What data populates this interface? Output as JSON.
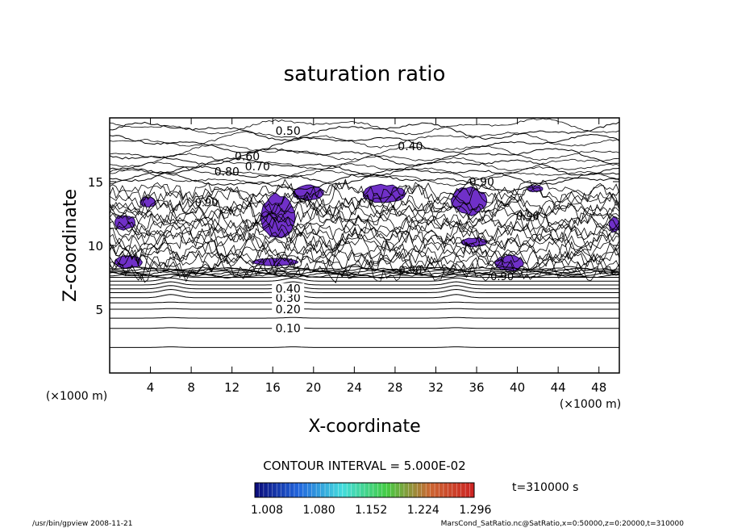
{
  "chart_data": {
    "type": "contour",
    "title": "saturation ratio",
    "xlabel": "X-coordinate",
    "ylabel": "Z-coordinate",
    "x_unit": "(×1000 m)",
    "y_unit": "(×1000 m)",
    "xlim": [
      0,
      50
    ],
    "ylim": [
      0,
      20
    ],
    "x_ticks": [
      4,
      8,
      12,
      16,
      20,
      24,
      28,
      32,
      36,
      40,
      44,
      48
    ],
    "y_ticks": [
      5,
      10,
      15
    ],
    "contour_interval_text": "CONTOUR INTERVAL = 5.000E-02",
    "time_label": "t=310000 s",
    "colorbar": {
      "tick_labels": [
        "1.008",
        "1.080",
        "1.152",
        "1.224",
        "1.296"
      ],
      "colors": [
        "#0a0a78",
        "#2266dd",
        "#44dddd",
        "#44cc44",
        "#cc6633",
        "#cc2222"
      ],
      "min": 1.008,
      "max": 1.296
    },
    "supersaturated_color": "#7030c8",
    "horizontal_contours": [
      {
        "z": 2.0,
        "label": ""
      },
      {
        "z": 3.5,
        "label": "0.10"
      },
      {
        "z": 4.3,
        "label": ""
      },
      {
        "z": 5.0,
        "label": "0.20"
      },
      {
        "z": 5.5,
        "label": ""
      },
      {
        "z": 5.9,
        "label": "0.30"
      },
      {
        "z": 6.3,
        "label": ""
      },
      {
        "z": 6.6,
        "label": "0.40"
      },
      {
        "z": 6.9,
        "label": ""
      },
      {
        "z": 7.2,
        "label": ""
      },
      {
        "z": 7.5,
        "label": ""
      }
    ],
    "upper_contours": [
      {
        "z": 19.0,
        "label": "0.50"
      },
      {
        "z": 18.0,
        "label": "0.40"
      },
      {
        "z": 17.0,
        "label": "0.60"
      },
      {
        "z": 16.2,
        "label": "0.70"
      },
      {
        "z": 15.5,
        "label": "0.80"
      },
      {
        "z": 15.0,
        "label": "0.90"
      }
    ],
    "midlevel_labels": [
      "0.90",
      "0.90",
      "0.90",
      "0.90"
    ],
    "purple_regions": [
      {
        "x": [
          0.5,
          2.5
        ],
        "z": [
          11.2,
          12.4
        ]
      },
      {
        "x": [
          3.0,
          4.5
        ],
        "z": [
          13.0,
          13.8
        ]
      },
      {
        "x": [
          14.8,
          18.2
        ],
        "z": [
          10.5,
          14.0
        ]
      },
      {
        "x": [
          18.0,
          21.0
        ],
        "z": [
          13.5,
          14.7
        ]
      },
      {
        "x": [
          24.8,
          29.0
        ],
        "z": [
          13.3,
          14.8
        ]
      },
      {
        "x": [
          33.5,
          37.0
        ],
        "z": [
          12.4,
          14.6
        ]
      },
      {
        "x": [
          0.5,
          3.2
        ],
        "z": [
          8.2,
          9.2
        ]
      },
      {
        "x": [
          14.0,
          18.5
        ],
        "z": [
          8.4,
          9.0
        ]
      },
      {
        "x": [
          37.8,
          40.6
        ],
        "z": [
          8.0,
          9.2
        ]
      },
      {
        "x": [
          34.5,
          37.0
        ],
        "z": [
          9.9,
          10.6
        ]
      },
      {
        "x": [
          41.0,
          42.5
        ],
        "z": [
          14.2,
          14.7
        ]
      },
      {
        "x": [
          49.0,
          50.0
        ],
        "z": [
          11.0,
          12.2
        ]
      }
    ],
    "footer_left": "/usr/bin/gpview  2008-11-21",
    "footer_right": "MarsCond_SatRatio.nc@SatRatio,x=0:50000,z=0:20000,t=310000"
  }
}
